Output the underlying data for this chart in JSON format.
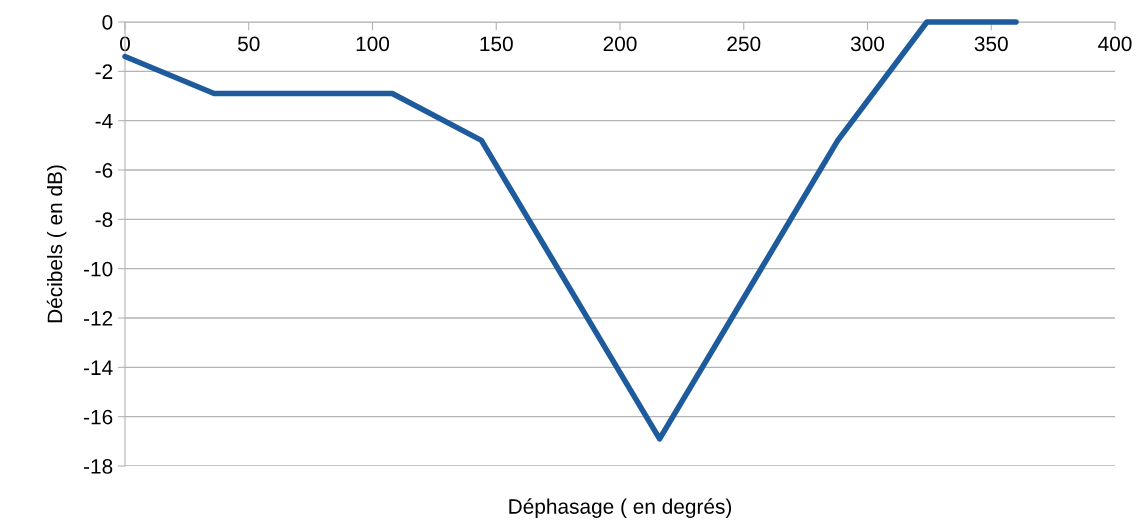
{
  "chart_data": {
    "type": "line",
    "xlabel": "Déphasage ( en degrés)",
    "ylabel": "Décibels ( en dB)",
    "x": [
      0,
      36,
      108,
      144,
      216,
      288,
      324,
      360
    ],
    "series": [
      {
        "color": "#1e5b9c",
        "values": [
          -1.4,
          -2.9,
          -2.9,
          -4.8,
          -16.9,
          -4.8,
          0,
          0
        ]
      }
    ],
    "xlim": [
      0,
      400
    ],
    "xticks": [
      0,
      50,
      100,
      150,
      200,
      250,
      300,
      350,
      400
    ],
    "ylim": [
      -18,
      0
    ],
    "yticks": [
      -18,
      -16,
      -14,
      -12,
      -10,
      -8,
      -6,
      -4,
      -2,
      0
    ],
    "grid": "y",
    "marker": "none",
    "line_style": "solid"
  }
}
